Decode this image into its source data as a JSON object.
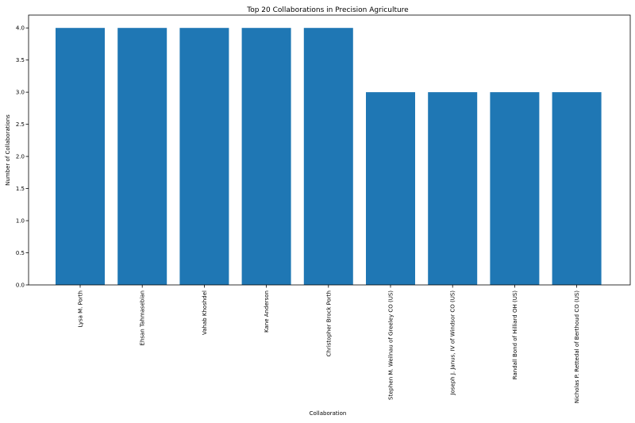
{
  "chart_data": {
    "type": "bar",
    "title": "Top 20 Collaborations in Precision Agriculture",
    "xlabel": "Collaboration",
    "ylabel": "Number of Collaborations",
    "categories": [
      "Lysa M. Porth",
      "Ehsan Tahmasebian",
      "Vahab Khoshdel",
      "Kane Anderson",
      "Christopher Brock Porth",
      "Stephen M. Weilnau of Greeley CO (US)",
      "Joseph J. Janus, IV of Windsor CO (US)",
      "Randall Bond of Hilliard OH (US)",
      "Nicholas P. Rettedal of Berthoud CO (US)"
    ],
    "values": [
      4,
      4,
      4,
      4,
      4,
      3,
      3,
      3,
      3
    ],
    "ylim": [
      0,
      4.2
    ],
    "yticks": [
      "0.0",
      "0.5",
      "1.0",
      "1.5",
      "2.0",
      "2.5",
      "3.0",
      "3.5",
      "4.0"
    ],
    "bar_color": "#1f77b4",
    "grid": false
  }
}
